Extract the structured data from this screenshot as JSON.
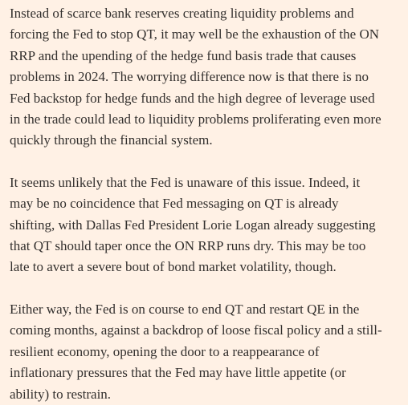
{
  "paragraphs": [
    [
      "Instead of scarce bank reserves creating liquidity problems and",
      "forcing the Fed to stop QT, it may well be the exhaustion of the ON",
      "RRP and the upending of the hedge fund basis trade that causes",
      "problems in 2024. The worrying difference now is that there is no",
      "Fed backstop for hedge funds and the high degree of leverage used",
      "in the trade could lead to liquidity problems proliferating even more",
      "quickly through the financial system."
    ],
    [
      "It seems unlikely that the Fed is unaware of this issue. Indeed, it",
      "may be no coincidence that Fed messaging on QT is already",
      "shifting, with Dallas Fed President Lorie Logan already suggesting",
      "that QT should taper once the ON RRP runs dry. This may be too",
      "late to avert a severe bout of bond market volatility, though."
    ],
    [
      "Either way, the Fed is on course to end QT and restart QE in the",
      "coming months, against a backdrop of loose fiscal policy and a still-",
      "resilient economy, opening the door to a reappearance of",
      "inflationary pressures that the Fed may have little appetite (or",
      "ability) to restrain."
    ]
  ]
}
